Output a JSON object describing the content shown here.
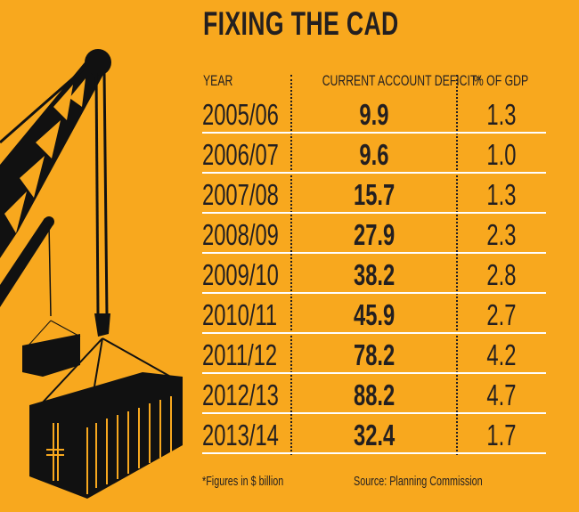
{
  "colors": {
    "background": "#F8A81E",
    "text": "#231f20",
    "rule": "#ffffff"
  },
  "chart_data": {
    "type": "table",
    "title": "FIXING THE CAD",
    "columns": [
      "YEAR",
      "CURRENT ACCOUNT DEFICIT*",
      "% OF GDP"
    ],
    "rows": [
      [
        "2005/06",
        "9.9",
        "1.3"
      ],
      [
        "2006/07",
        "9.6",
        "1.0"
      ],
      [
        "2007/08",
        "15.7",
        "1.3"
      ],
      [
        "2008/09",
        "27.9",
        "2.3"
      ],
      [
        "2009/10",
        "38.2",
        "2.8"
      ],
      [
        "2010/11",
        "45.9",
        "2.7"
      ],
      [
        "2011/12",
        "78.2",
        "4.2"
      ],
      [
        "2012/13",
        "88.2",
        "4.7"
      ],
      [
        "2013/14",
        "32.4",
        "1.7"
      ]
    ],
    "footnote": "*Figures in $ billion",
    "source": "Source: Planning Commission"
  },
  "illustration": "crane-lifting-containers"
}
